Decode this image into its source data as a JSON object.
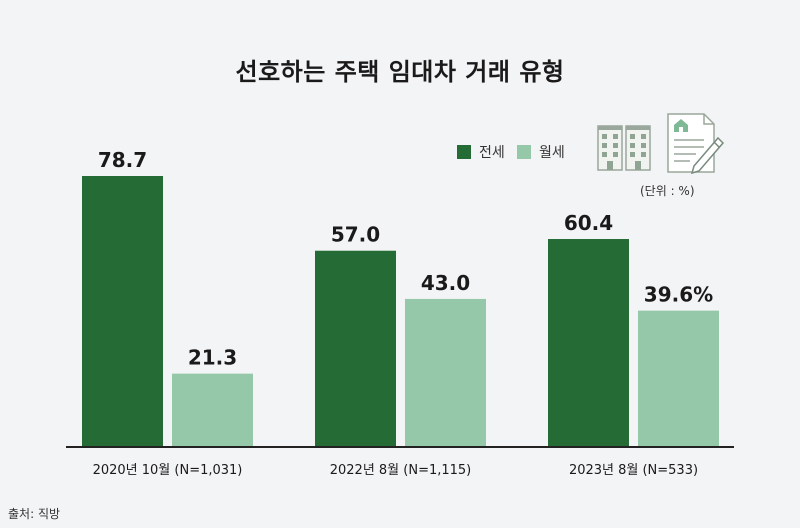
{
  "chart_data": {
    "type": "bar",
    "title": "선호하는 주택 임대차 거래 유형",
    "categories": [
      "2020년 10월 (N=1,031)",
      "2022년 8월 (N=1,115)",
      "2023년 8월 (N=533)"
    ],
    "series": [
      {
        "name": "전세",
        "values": [
          78.7,
          57.0,
          60.4
        ],
        "labels": [
          "78.7",
          "57.0",
          "60.4"
        ]
      },
      {
        "name": "월세",
        "values": [
          21.3,
          43.0,
          39.6
        ],
        "labels": [
          "21.3",
          "43.0",
          "39.6%"
        ]
      }
    ],
    "ylim": [
      0,
      80
    ],
    "grid": false,
    "legend": "top-right"
  },
  "colors": {
    "jeonse": "#256b36",
    "wolse": "#95c8a9",
    "axis": "#222222"
  },
  "legend": {
    "jeonse_label": "전세",
    "wolse_label": "월세"
  },
  "icons": {
    "buildings": "apartment-buildings-icon",
    "document": "contract-document-icon"
  },
  "unit_label": "(단위 : %)",
  "source_label": "출처: 직방"
}
